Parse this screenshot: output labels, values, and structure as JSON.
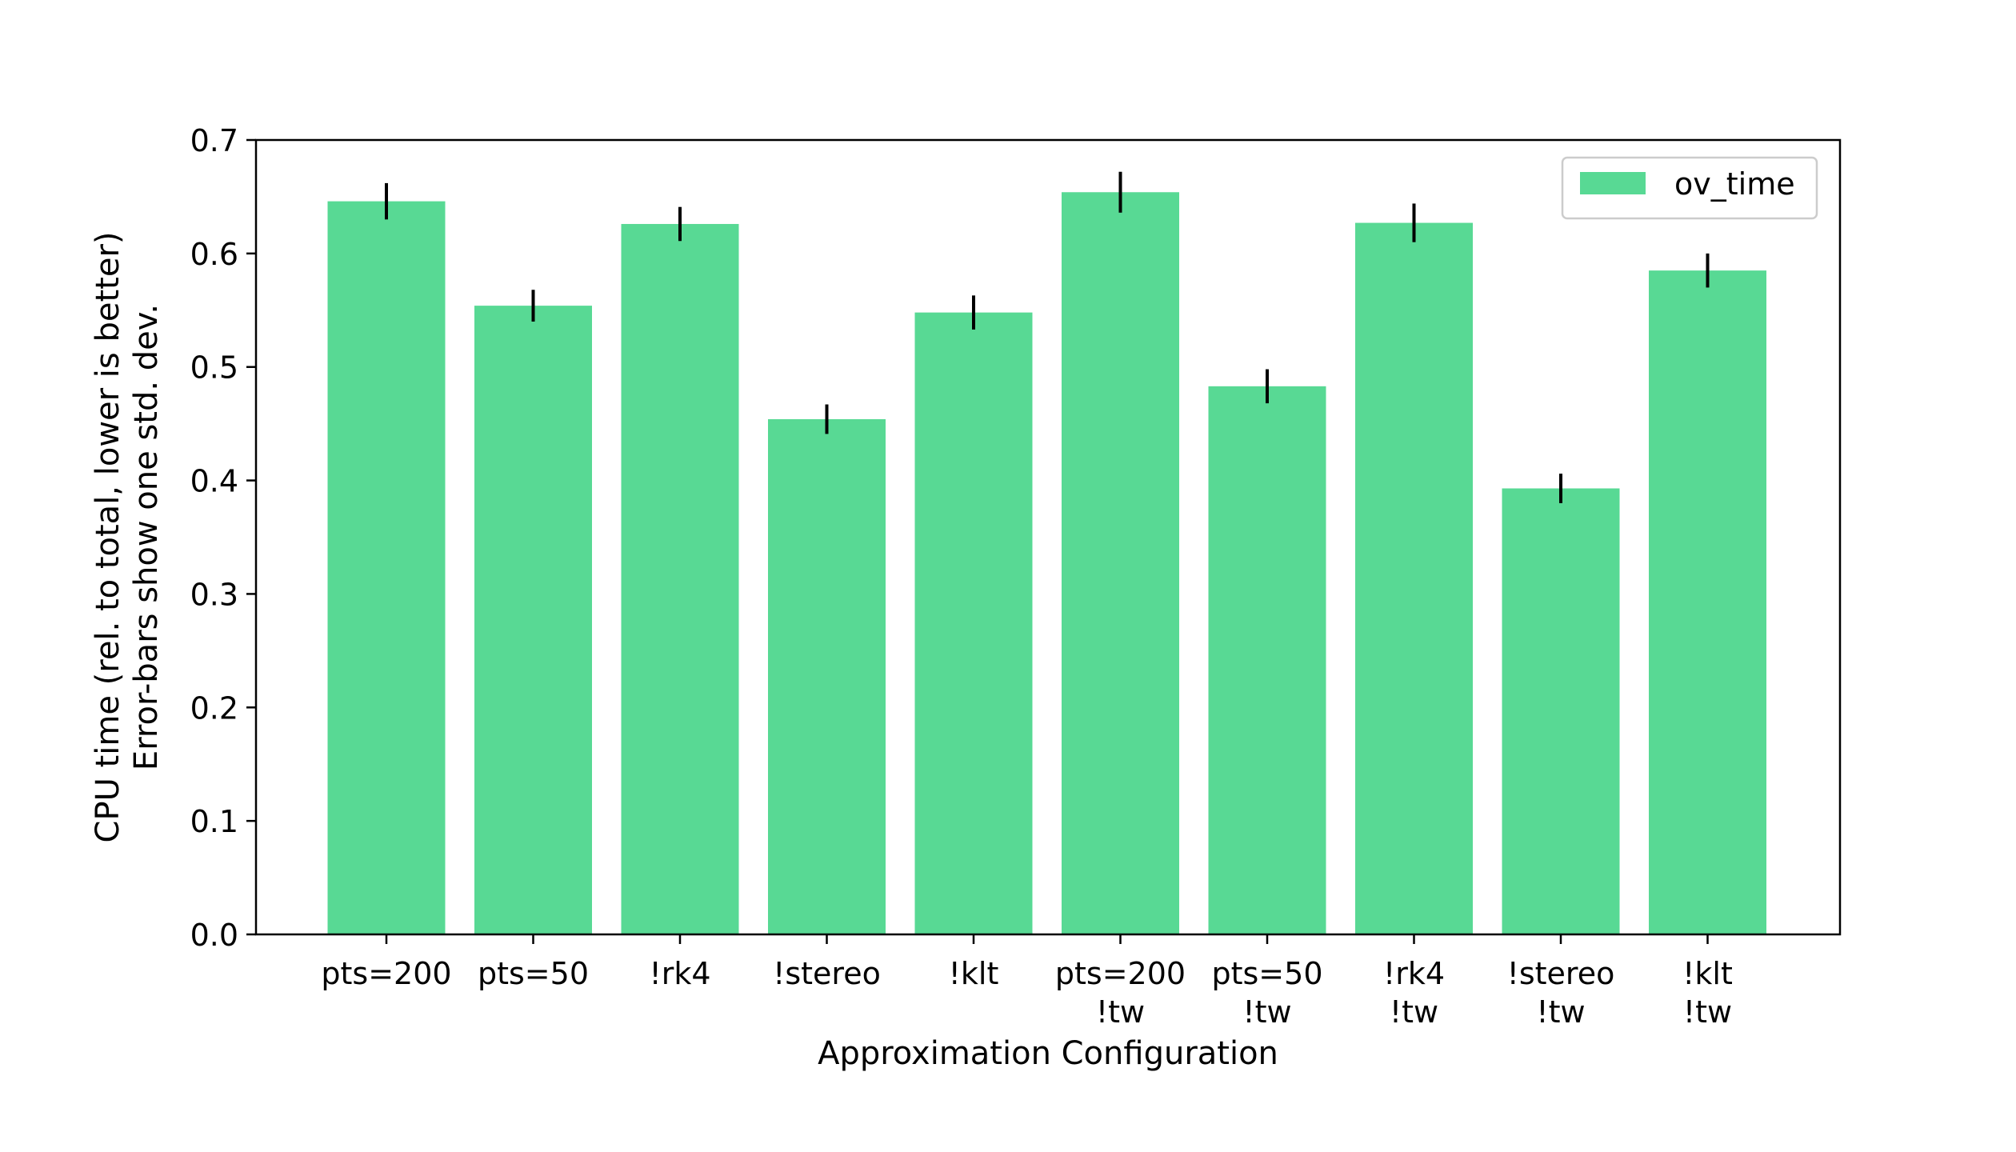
{
  "chart_data": {
    "type": "bar",
    "title": "",
    "xlabel": "Approximation Configuration",
    "ylabel_line1": "CPU time (rel. to total, lower is better)",
    "ylabel_line2": "Error-bars show one std. dev.",
    "ylim": [
      0,
      0.7
    ],
    "yticks": [
      "0.0",
      "0.1",
      "0.2",
      "0.3",
      "0.4",
      "0.5",
      "0.6",
      "0.7"
    ],
    "categories": [
      [
        "pts=200"
      ],
      [
        "pts=50"
      ],
      [
        "!rk4"
      ],
      [
        "!stereo"
      ],
      [
        "!klt"
      ],
      [
        "pts=200",
        "!tw"
      ],
      [
        "pts=50",
        "!tw"
      ],
      [
        "!rk4",
        "!tw"
      ],
      [
        "!stereo",
        "!tw"
      ],
      [
        "!klt",
        "!tw"
      ]
    ],
    "series": [
      {
        "name": "ov_time",
        "color": "#58d994",
        "values": [
          0.646,
          0.554,
          0.626,
          0.454,
          0.548,
          0.654,
          0.483,
          0.627,
          0.393,
          0.585
        ],
        "errors": [
          0.016,
          0.014,
          0.015,
          0.013,
          0.015,
          0.018,
          0.015,
          0.017,
          0.013,
          0.015
        ]
      }
    ],
    "legend_position": "top-right",
    "grid": false
  }
}
